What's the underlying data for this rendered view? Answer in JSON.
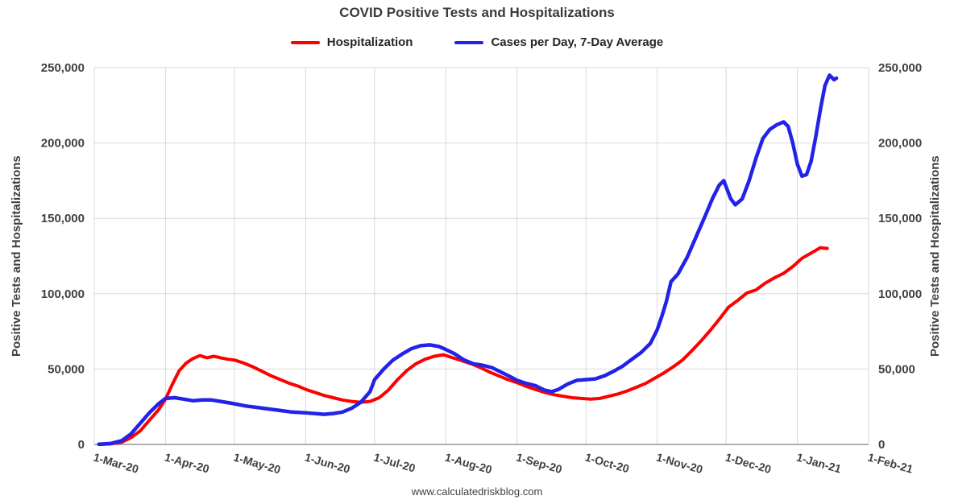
{
  "chart": {
    "title": "COVID Positive Tests and Hospitalizations",
    "footer": "www.calculatedriskblog.com",
    "left_axis_title": "Positive Tests and Hospitalizations",
    "right_axis_title": "Positive Tests and Hospitalizations"
  },
  "legend": {
    "items": [
      {
        "label": "Hospitalization",
        "color": "#FF0000"
      },
      {
        "label": "Cases per Day, 7-Day Average",
        "color": "#2222E8"
      }
    ]
  },
  "chart_data": {
    "type": "line",
    "title": "COVID Positive Tests and Hospitalizations",
    "xlabel": "",
    "ylabel": "Positive Tests and Hospitalizations",
    "ylim": [
      0,
      250000
    ],
    "y_ticks": [
      0,
      50000,
      100000,
      150000,
      200000,
      250000
    ],
    "x_unit": "days since 1-Mar-20",
    "x_range_days": [
      0,
      337
    ],
    "x_tick_days": [
      0,
      31,
      61,
      92,
      122,
      153,
      184,
      214,
      245,
      275,
      306,
      337
    ],
    "x_tick_labels": [
      "1-Mar-20",
      "1-Apr-20",
      "1-May-20",
      "1-Jun-20",
      "1-Jul-20",
      "1-Aug-20",
      "1-Sep-20",
      "1-Oct-20",
      "1-Nov-20",
      "1-Dec-20",
      "1-Jan-21",
      "1-Feb-21"
    ],
    "grid": true,
    "legend_position": "top",
    "colors": {
      "grid": "#D9D9D9",
      "axis": "#7F7F7F",
      "text": "#404040"
    },
    "series": [
      {
        "name": "Hospitalization",
        "color": "#FF0000",
        "width": 4,
        "x": [
          2,
          7,
          12,
          16,
          20,
          24,
          28,
          31,
          34,
          37,
          40,
          43,
          46,
          49,
          52,
          55,
          58,
          61,
          65,
          69,
          73,
          77,
          81,
          85,
          89,
          92,
          96,
          100,
          104,
          108,
          112,
          116,
          120,
          124,
          128,
          132,
          136,
          140,
          144,
          148,
          152,
          156,
          160,
          164,
          168,
          172,
          176,
          180,
          184,
          188,
          192,
          196,
          200,
          204,
          208,
          212,
          216,
          220,
          224,
          228,
          232,
          236,
          240,
          244,
          248,
          252,
          256,
          260,
          264,
          268,
          272,
          276,
          280,
          284,
          288,
          292,
          296,
          300,
          304,
          308,
          312,
          316,
          319
        ],
        "y": [
          0,
          300,
          1500,
          4500,
          9000,
          16000,
          23000,
          30000,
          40000,
          49000,
          54000,
          57000,
          59000,
          57500,
          58500,
          57500,
          56500,
          56000,
          54000,
          51500,
          48500,
          45500,
          43000,
          40500,
          38500,
          36500,
          34500,
          32500,
          31000,
          29500,
          28500,
          28000,
          28500,
          31000,
          36000,
          43000,
          49000,
          53500,
          56500,
          58500,
          59500,
          57500,
          55500,
          53500,
          51000,
          48000,
          45500,
          43000,
          41000,
          38500,
          36500,
          34500,
          33000,
          32000,
          31000,
          30500,
          30000,
          30500,
          32000,
          33500,
          35500,
          38000,
          40500,
          44000,
          47500,
          51500,
          56000,
          62000,
          68500,
          75500,
          83000,
          91000,
          95500,
          100500,
          102500,
          107000,
          110500,
          113500,
          118000,
          123500,
          127000,
          130500,
          130000
        ]
      },
      {
        "name": "Cases per Day, 7-Day Average",
        "color": "#2222E8",
        "width": 4.5,
        "x": [
          2,
          7,
          12,
          16,
          20,
          24,
          28,
          31,
          35,
          39,
          43,
          47,
          51,
          55,
          59,
          61,
          66,
          71,
          76,
          81,
          86,
          92,
          96,
          100,
          104,
          108,
          112,
          116,
          120,
          122,
          126,
          130,
          134,
          138,
          142,
          146,
          150,
          153,
          157,
          161,
          165,
          169,
          173,
          177,
          181,
          184,
          188,
          192,
          196,
          199,
          202,
          206,
          210,
          214,
          218,
          222,
          226,
          230,
          234,
          238,
          242,
          245,
          247,
          249,
          251,
          254,
          258,
          262,
          266,
          269,
          272,
          274,
          277,
          279,
          282,
          285,
          288,
          291,
          294,
          297,
          300,
          302,
          304,
          306,
          308,
          310,
          312,
          314,
          316,
          318,
          320,
          322,
          323
        ],
        "y": [
          100,
          600,
          2500,
          7000,
          14000,
          21000,
          27000,
          30500,
          31000,
          30000,
          29000,
          29500,
          29500,
          28500,
          27500,
          27000,
          25500,
          24500,
          23500,
          22500,
          21500,
          21000,
          20500,
          20000,
          20500,
          21500,
          24000,
          28000,
          35000,
          43000,
          50000,
          56000,
          60000,
          63500,
          65500,
          66000,
          65000,
          63000,
          60000,
          56000,
          53500,
          52500,
          51000,
          48000,
          45000,
          42500,
          40500,
          39000,
          36000,
          35000,
          36500,
          40000,
          42500,
          43000,
          43500,
          45500,
          48500,
          52000,
          56500,
          61000,
          67000,
          76000,
          85000,
          95000,
          108000,
          113000,
          124000,
          138000,
          152000,
          163000,
          172000,
          175000,
          163000,
          159000,
          163000,
          175000,
          190000,
          203000,
          209000,
          212000,
          214000,
          211000,
          200000,
          186000,
          178000,
          179000,
          188000,
          204000,
          222000,
          238000,
          245000,
          242000,
          243000
        ]
      }
    ]
  }
}
